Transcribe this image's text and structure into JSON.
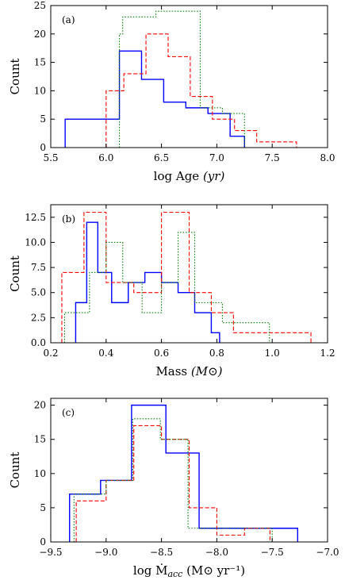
{
  "chart_data": [
    {
      "type": "histogram",
      "panel_label": "(a)",
      "xlabel_main": "log Age ",
      "xlabel_unit": "(yr)",
      "ylabel": "Count",
      "xlim": [
        5.5,
        8.0
      ],
      "ylim": [
        0,
        25
      ],
      "xticks": [
        5.5,
        6.0,
        6.5,
        7.0,
        7.5,
        8.0
      ],
      "xtick_labels": [
        "5.5",
        "6.0",
        "6.5",
        "7.0",
        "7.5",
        "8.0"
      ],
      "yticks": [
        0,
        5,
        10,
        15,
        20,
        25
      ],
      "ytick_labels": [
        "0",
        "5",
        "10",
        "15",
        "20",
        "25"
      ],
      "series": [
        {
          "color": "#0000ff",
          "style": "solid",
          "edges": [
            5.63,
            6.12,
            6.32,
            6.52,
            6.72,
            6.92,
            7.12,
            7.25
          ],
          "counts": [
            5,
            17,
            12,
            8,
            7,
            6,
            2
          ]
        },
        {
          "color": "#ff0000",
          "style": "dashed",
          "edges": [
            6.0,
            6.16,
            6.36,
            6.56,
            6.76,
            6.96,
            7.16,
            7.36,
            7.56,
            7.72
          ],
          "counts": [
            10,
            13,
            20,
            16,
            9,
            5,
            3,
            1,
            1
          ]
        },
        {
          "color": "#008000",
          "style": "dotted",
          "edges": [
            6.12,
            6.15,
            6.45,
            6.85,
            7.05,
            7.25
          ],
          "counts": [
            20,
            23,
            24,
            7,
            6
          ]
        }
      ]
    },
    {
      "type": "histogram",
      "panel_label": "(b)",
      "xlabel_main": "Mass ",
      "xlabel_unit": "(M⊙)",
      "ylabel": "Count",
      "xlim": [
        0.2,
        1.2
      ],
      "ylim": [
        0,
        13.75
      ],
      "xticks": [
        0.2,
        0.4,
        0.6,
        0.8,
        1.0,
        1.2
      ],
      "xtick_labels": [
        "0.2",
        "0.4",
        "0.6",
        "0.8",
        "1.0",
        "1.2"
      ],
      "yticks": [
        0,
        2.5,
        5.0,
        7.5,
        10.0,
        12.5
      ],
      "ytick_labels": [
        "0.0",
        "2.5",
        "5.0",
        "7.5",
        "10.0",
        "12.5"
      ],
      "series": [
        {
          "color": "#0000ff",
          "style": "solid",
          "edges": [
            0.29,
            0.33,
            0.37,
            0.42,
            0.48,
            0.54,
            0.6,
            0.66,
            0.72,
            0.78,
            0.81
          ],
          "counts": [
            4,
            12,
            7,
            4,
            6,
            7,
            6,
            5,
            3,
            1
          ]
        },
        {
          "color": "#ff0000",
          "style": "dashed",
          "edges": [
            0.24,
            0.32,
            0.4,
            0.5,
            0.6,
            0.7,
            0.78,
            0.86,
            1.14
          ],
          "counts": [
            7,
            13,
            6,
            5,
            13,
            5,
            3,
            1
          ]
        },
        {
          "color": "#008000",
          "style": "dotted",
          "edges": [
            0.25,
            0.34,
            0.4,
            0.46,
            0.53,
            0.6,
            0.66,
            0.72,
            0.82,
            0.99
          ],
          "counts": [
            3,
            7,
            10,
            6,
            3,
            6,
            11,
            4,
            2
          ]
        }
      ]
    },
    {
      "type": "histogram",
      "panel_label": "(c)",
      "xlabel_main": "log Ṁ",
      "xlabel_sub": "acc",
      "xlabel_unit": " (M⊙ yr⁻¹)",
      "ylabel": "Count",
      "xlim": [
        -9.5,
        -7.0
      ],
      "ylim": [
        0,
        21
      ],
      "xticks": [
        -9.5,
        -9.0,
        -8.5,
        -8.0,
        -7.5,
        -7.0
      ],
      "xtick_labels": [
        "−9.5",
        "−9.0",
        "−8.5",
        "−8.0",
        "−7.5",
        "−7.0"
      ],
      "yticks": [
        0,
        5,
        10,
        15,
        20
      ],
      "ytick_labels": [
        "0",
        "5",
        "10",
        "15",
        "20"
      ],
      "series": [
        {
          "color": "#0000ff",
          "style": "solid",
          "edges": [
            -9.33,
            -9.05,
            -8.77,
            -8.46,
            -8.16,
            -7.27
          ],
          "counts": [
            7,
            9,
            20,
            13,
            2
          ]
        },
        {
          "color": "#ff0000",
          "style": "dashed",
          "edges": [
            -9.27,
            -9.0,
            -8.75,
            -8.5,
            -8.25,
            -8.0,
            -7.75,
            -7.52
          ],
          "counts": [
            6,
            9,
            17,
            15,
            5,
            1,
            2
          ]
        },
        {
          "color": "#008000",
          "style": "dotted",
          "edges": [
            -9.29,
            -9.0,
            -8.76,
            -8.51,
            -8.26,
            -7.5
          ],
          "counts": [
            7,
            9,
            18,
            15,
            2
          ]
        }
      ]
    }
  ]
}
